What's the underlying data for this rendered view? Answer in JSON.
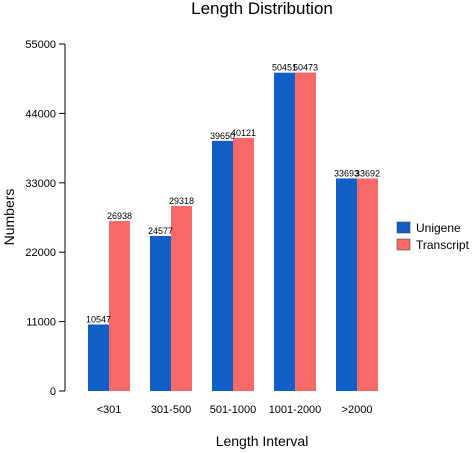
{
  "chart_data": {
    "type": "bar",
    "title": "Length Distribution",
    "xlabel": "Length Interval",
    "ylabel": "Numbers",
    "categories": [
      "<301",
      "301-500",
      "501-1000",
      "1001-2000",
      ">2000"
    ],
    "series": [
      {
        "name": "Unigene",
        "color": "#0f5fc7",
        "values": [
          10547,
          24577,
          39650,
          50451,
          33693
        ]
      },
      {
        "name": "Transcript",
        "color": "#f86a6a",
        "values": [
          26938,
          29318,
          40121,
          50473,
          33692
        ]
      }
    ],
    "ylim": [
      0,
      55000
    ],
    "yticks": [
      0,
      11000,
      22000,
      33000,
      44000,
      55000
    ],
    "grid": false,
    "legend_position": "right"
  }
}
